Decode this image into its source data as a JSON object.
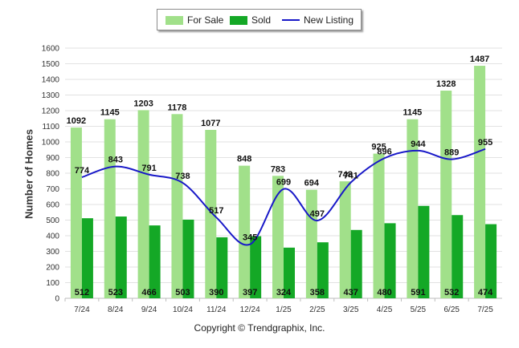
{
  "chart_data": {
    "type": "bar",
    "title": "",
    "xlabel": "",
    "ylabel": "Number of Homes",
    "ylim": [
      0,
      1600
    ],
    "yticks": [
      0,
      100,
      200,
      300,
      400,
      500,
      600,
      700,
      800,
      900,
      1000,
      1100,
      1200,
      1300,
      1400,
      1500,
      1600
    ],
    "categories": [
      "7/24",
      "8/24",
      "9/24",
      "10/24",
      "11/24",
      "12/24",
      "1/25",
      "2/25",
      "3/25",
      "4/25",
      "5/25",
      "6/25",
      "7/25"
    ],
    "series": [
      {
        "name": "For Sale",
        "type": "bar",
        "color": "#a1e08a",
        "values": [
          1092,
          1145,
          1203,
          1178,
          1077,
          848,
          783,
          694,
          748,
          925,
          1145,
          1328,
          1487
        ],
        "labels": [
          "1092",
          "1145",
          "1203",
          "1178",
          "1077",
          "848",
          "783",
          "694",
          "748",
          "925",
          "1145",
          "1328",
          "1487"
        ]
      },
      {
        "name": "Sold",
        "type": "bar",
        "color": "#14a826",
        "values": [
          512,
          523,
          466,
          503,
          390,
          397,
          324,
          358,
          437,
          480,
          591,
          532,
          474
        ],
        "labels": [
          "512",
          "523",
          "466",
          "503",
          "390",
          "397",
          "324",
          "358",
          "437",
          "480",
          "591",
          "532",
          "474"
        ]
      },
      {
        "name": "New Listing",
        "type": "line",
        "color": "#1818c8",
        "values": [
          774,
          843,
          791,
          738,
          517,
          345,
          699,
          497,
          741,
          896,
          944,
          889,
          955
        ],
        "labels": [
          "774",
          "843",
          "791",
          "738",
          "517",
          "345",
          "699",
          "497",
          "741",
          "896",
          "944",
          "889",
          "955"
        ]
      }
    ],
    "grid": true,
    "legend": "top-center"
  },
  "legend": {
    "for_sale": "For Sale",
    "sold": "Sold",
    "new_listing": "New Listing"
  },
  "colors": {
    "for_sale": "#a1e08a",
    "sold": "#14a826",
    "new_listing": "#1818c8"
  },
  "copyright": "Copyright © Trendgraphix, Inc."
}
